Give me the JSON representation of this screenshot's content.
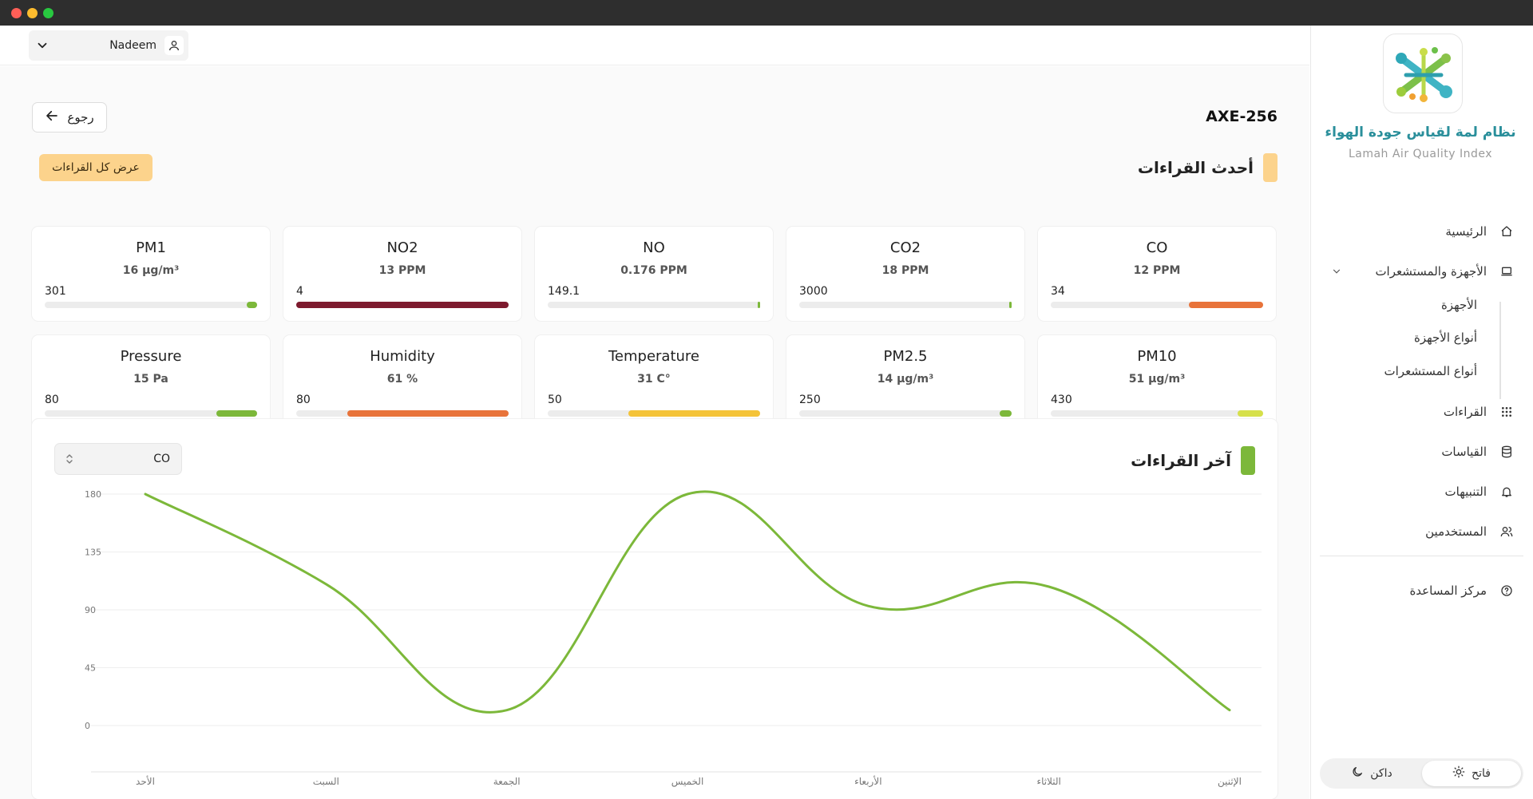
{
  "header": {
    "user_name": "Nadeem"
  },
  "sidebar": {
    "brand_ar": "نظام لمة لقياس جودة الهواء",
    "brand_en": "Lamah Air Quality Index",
    "items": [
      {
        "label": "الرئيسية",
        "icon": "home-icon"
      },
      {
        "label": "الأجهزة والمستشعرات",
        "icon": "laptop-icon",
        "expanded": true,
        "children": [
          "الأجهزة",
          "أنواع الأجهزة",
          "أنواع المستشعرات"
        ]
      },
      {
        "label": "القراءات",
        "icon": "grid-icon"
      },
      {
        "label": "القياسات",
        "icon": "database-icon"
      },
      {
        "label": "التنبيهات",
        "icon": "bell-icon"
      },
      {
        "label": "المستخدمين",
        "icon": "users-icon"
      }
    ],
    "help": {
      "label": "مركز المساعدة",
      "icon": "help-icon"
    },
    "theme": {
      "light": "فاتح",
      "dark": "داكن",
      "selected": "light"
    }
  },
  "main": {
    "device_id": "AXE-256",
    "back_label": "رجوع",
    "latest_title": "أحدث القراءات",
    "view_all_label": "عرض كل القراءات",
    "cards": [
      {
        "title": "CO",
        "value": "12 PPM",
        "max": "34",
        "fraction": 0.35,
        "color": "#e8733a"
      },
      {
        "title": "CO2",
        "value": "18 PPM",
        "max": "3000",
        "fraction": 0.006,
        "color": "#7cb83a"
      },
      {
        "title": "NO",
        "value": "0.176 PPM",
        "max": "149.1",
        "fraction": 0.004,
        "color": "#7cb83a"
      },
      {
        "title": "NO2",
        "value": "13 PPM",
        "max": "4",
        "fraction": 1.0,
        "color": "#7d1a2e"
      },
      {
        "title": "PM1",
        "value": "16 µg/m³",
        "max": "301",
        "fraction": 0.05,
        "color": "#7cb83a"
      },
      {
        "title": "PM10",
        "value": "51 µg/m³",
        "max": "430",
        "fraction": 0.12,
        "color": "#d6e04a"
      },
      {
        "title": "PM2.5",
        "value": "14 µg/m³",
        "max": "250",
        "fraction": 0.055,
        "color": "#7cb83a"
      },
      {
        "title": "Temperature",
        "value": "31 C°",
        "max": "50",
        "fraction": 0.62,
        "color": "#f4c338"
      },
      {
        "title": "Humidity",
        "value": "61 %",
        "max": "80",
        "fraction": 0.76,
        "color": "#e8733a"
      },
      {
        "title": "Pressure",
        "value": "15 Pa",
        "max": "80",
        "fraction": 0.19,
        "color": "#7cb83a"
      }
    ],
    "chart_panel": {
      "title": "آخر القراءات",
      "selected_sensor": "CO"
    }
  },
  "chart_data": {
    "type": "line",
    "categories": [
      "الأحد",
      "السبت",
      "الجمعة",
      "الخميس",
      "الأربعاء",
      "الثلاثاء",
      "الإثنين"
    ],
    "series": [
      {
        "values": [
          180,
          110,
          12,
          180,
          93,
          108,
          12
        ],
        "color": "#7cb83a"
      }
    ],
    "yticks": [
      "180",
      "135",
      "90",
      "45",
      "0"
    ],
    "ylim": [
      0,
      180
    ],
    "grid": true,
    "title": "",
    "xlabel": "",
    "ylabel": ""
  }
}
